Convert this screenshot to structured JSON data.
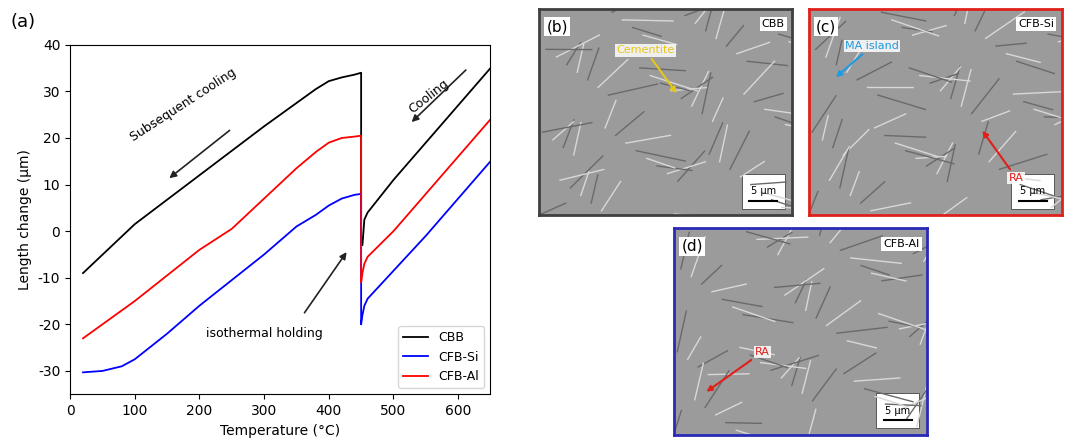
{
  "chart_data": {
    "type": "line",
    "label": "(a)",
    "xlabel": "Temperature (°C)",
    "ylabel": "Length change (µm)",
    "xlim": [
      0,
      650
    ],
    "xticks": [
      0,
      100,
      200,
      300,
      400,
      500,
      600
    ],
    "ylim": [
      -35,
      40
    ],
    "yticks": [
      -30,
      -20,
      -10,
      0,
      10,
      20,
      30,
      40
    ],
    "legend": "lower right",
    "annotations": [
      {
        "text": "Subsequent cooling"
      },
      {
        "text": "Cooling"
      },
      {
        "text": "isothermal holding"
      }
    ],
    "series": [
      {
        "name": "CBB",
        "color": "#000000",
        "x": [
          650,
          600,
          550,
          500,
          460,
          455,
          452,
          450,
          450,
          440,
          420,
          400,
          380,
          350,
          300,
          200,
          100,
          20
        ],
        "values": [
          35,
          27,
          19,
          11,
          4,
          2.5,
          -3,
          -3,
          34,
          33.6,
          33,
          32.2,
          30.5,
          27.5,
          22.5,
          12,
          1.5,
          -9
        ]
      },
      {
        "name": "CFB-Si",
        "color": "#0000ff",
        "x": [
          650,
          600,
          550,
          500,
          460,
          455,
          452,
          450,
          450,
          440,
          420,
          400,
          380,
          350,
          300,
          200,
          150,
          100,
          80,
          50,
          20
        ],
        "values": [
          15,
          7,
          -1,
          -8.5,
          -14.5,
          -16,
          -18,
          -20,
          8,
          7.8,
          7,
          5.5,
          3.5,
          1,
          -5,
          -16,
          -22,
          -27.5,
          -29,
          -30,
          -30.3
        ]
      },
      {
        "name": "CFB-Al",
        "color": "#ff0000",
        "x": [
          650,
          600,
          550,
          500,
          460,
          455,
          452,
          450,
          450,
          440,
          420,
          400,
          380,
          350,
          300,
          250,
          200,
          100,
          20
        ],
        "values": [
          24,
          16,
          8,
          0,
          -5.5,
          -7,
          -9,
          -11,
          20.5,
          20.3,
          20,
          19,
          17,
          13.5,
          7,
          0.5,
          -4,
          -15,
          -23
        ]
      }
    ]
  },
  "micrographs": [
    {
      "panel": "(b)",
      "sample": "CBB",
      "color": "#404040",
      "scale_bar": "5 µm",
      "labels": [
        {
          "text": "Cementite",
          "color": "#e6c619"
        }
      ]
    },
    {
      "panel": "(c)",
      "sample": "CFB-Si",
      "color": "#e0201b",
      "scale_bar": "5 µm",
      "labels": [
        {
          "text": "MA island",
          "color": "#1e9be0"
        },
        {
          "text": "RA",
          "color": "#e0201b"
        }
      ]
    },
    {
      "panel": "(d)",
      "sample": "CFB-Al",
      "color": "#2a2ab8",
      "scale_bar": "5 µm",
      "labels": [
        {
          "text": "RA",
          "color": "#e0201b"
        }
      ]
    }
  ]
}
